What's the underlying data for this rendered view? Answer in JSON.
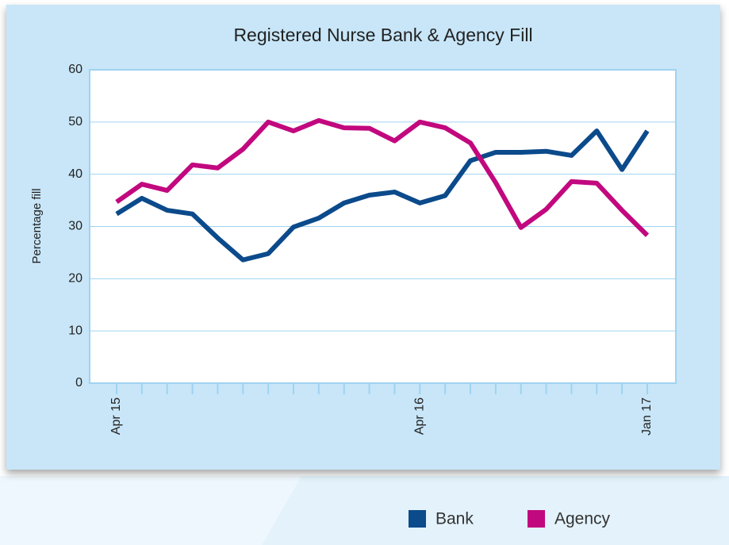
{
  "chart_data": {
    "type": "line",
    "title": "Registered Nurse Bank & Agency Fill",
    "ylabel": "Percentage fill",
    "categories": [
      "Apr 15",
      null,
      null,
      null,
      null,
      null,
      null,
      null,
      null,
      null,
      null,
      null,
      "Apr 16",
      null,
      null,
      null,
      null,
      null,
      null,
      null,
      null,
      "Jan 17"
    ],
    "series": [
      {
        "name": "Bank",
        "color": "#0b4a8b",
        "values": [
          32.4,
          35.4,
          33.1,
          32.4,
          27.8,
          23.6,
          24.8,
          29.9,
          31.6,
          34.5,
          36.0,
          36.6,
          34.5,
          35.9,
          42.6,
          44.2,
          44.2,
          44.4,
          43.6,
          48.3,
          40.9,
          48.3
        ]
      },
      {
        "name": "Agency",
        "color": "#c2087e",
        "values": [
          34.7,
          38.1,
          36.9,
          41.8,
          41.2,
          44.8,
          50.0,
          48.3,
          50.3,
          48.9,
          48.8,
          46.4,
          50.0,
          48.9,
          46.0,
          38.4,
          29.8,
          33.3,
          38.6,
          38.3,
          33.1,
          28.3
        ]
      }
    ],
    "ylim": [
      0,
      60
    ],
    "yticks": [
      0,
      10,
      20,
      30,
      40,
      50,
      60
    ],
    "grid": true,
    "legend": "bottom-right"
  }
}
